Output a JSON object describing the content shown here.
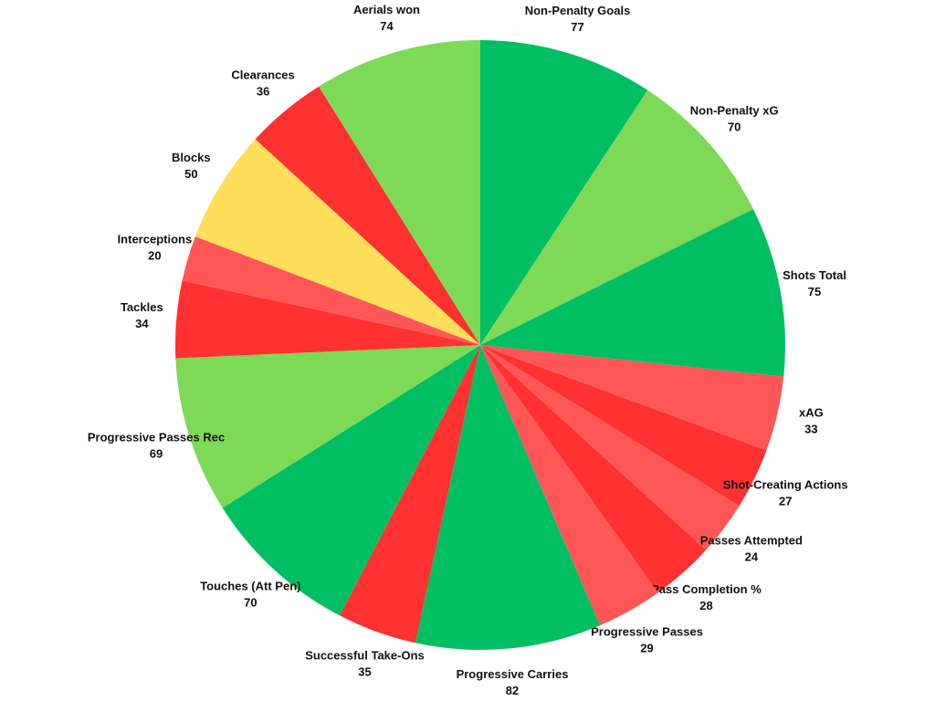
{
  "chart_data": {
    "type": "pie",
    "categories": [
      "Non-Penalty Goals",
      "Non-Penalty xG",
      "Shots Total",
      "xAG",
      "Shot-Creating Actions",
      "Passes Attempted",
      "Pass Completion %",
      "Progressive Passes",
      "Progressive Carries",
      "Successful Take-Ons",
      "Touches (Att Pen)",
      "Progressive Passes Rec",
      "Tackles",
      "Interceptions",
      "Blocks",
      "Clearances",
      "Aerials won"
    ],
    "values": [
      77,
      70,
      75,
      33,
      27,
      24,
      28,
      29,
      82,
      35,
      70,
      69,
      34,
      20,
      50,
      36,
      74
    ],
    "colors": [
      "#00bf63",
      "#7ed957",
      "#00bf63",
      "#ff5757",
      "#ff3131",
      "#ff5757",
      "#ff3131",
      "#ff5757",
      "#00bf63",
      "#ff3131",
      "#00bf63",
      "#7ed957",
      "#ff3131",
      "#ff5757",
      "#ffde59",
      "#ff3131",
      "#7ed957"
    ]
  }
}
